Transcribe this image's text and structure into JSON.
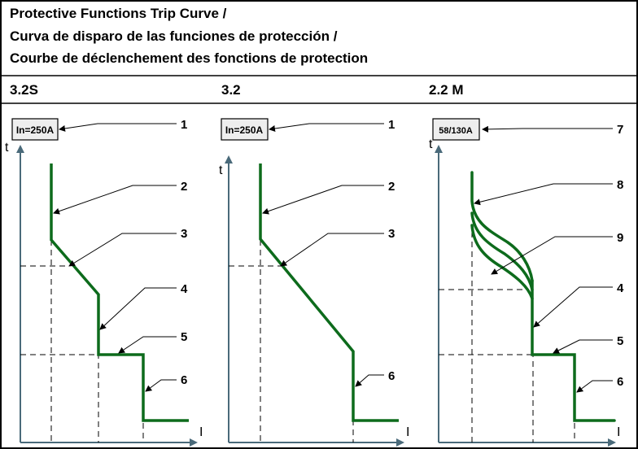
{
  "title": {
    "line1": "Protective Functions Trip Curve /",
    "line2": "Curva de disparo de las funciones de protección /",
    "line3": "Courbe de déclenchement des fonctions de protection"
  },
  "columns": [
    {
      "heading": "3.2S",
      "rating": "In=250A"
    },
    {
      "heading": "3.2",
      "rating": "In=250A"
    },
    {
      "heading": "2.2 M",
      "rating": "58/130A"
    }
  ],
  "axes": {
    "y_label": "t",
    "x_label": "I"
  },
  "callouts": {
    "c1": {
      "n1": "1",
      "n2": "2",
      "n3": "3",
      "n4": "4",
      "n5": "5",
      "n6": "6"
    },
    "c2": {
      "n1": "1",
      "n2": "2",
      "n3": "3",
      "n6": "6"
    },
    "c3": {
      "n7": "7",
      "n8": "8",
      "n9": "9",
      "n4": "4",
      "n5": "5",
      "n6": "6"
    }
  },
  "colors": {
    "curve": "#0d6b1c",
    "axis": "#4a6a7a",
    "dash": "#000000",
    "label_box_fill": "#eeeeee"
  }
}
